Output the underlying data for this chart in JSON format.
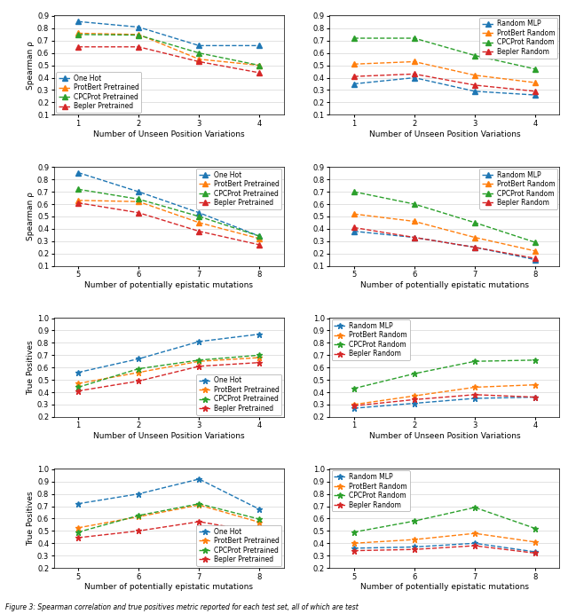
{
  "figsize": [
    6.4,
    6.92
  ],
  "row0_left": {
    "xlabel": "Number of Unseen Position Variations",
    "ylabel": "Spearman ρ",
    "xlim": [
      0.6,
      4.4
    ],
    "ylim": [
      0.1,
      0.9
    ],
    "yticks": [
      0.1,
      0.2,
      0.3,
      0.4,
      0.5,
      0.6,
      0.7,
      0.8,
      0.9
    ],
    "xticks": [
      1,
      2,
      3,
      4
    ],
    "series": [
      {
        "label": "One Hot",
        "x": [
          1,
          2,
          3,
          4
        ],
        "y": [
          0.855,
          0.81,
          0.66,
          0.66
        ],
        "color": "#1f77b4",
        "marker": "^"
      },
      {
        "label": "ProtBert Pretrained",
        "x": [
          1,
          2,
          3,
          4
        ],
        "y": [
          0.76,
          0.75,
          0.55,
          0.5
        ],
        "color": "#ff7f0e",
        "marker": "^"
      },
      {
        "label": "CPCProt Pretrained",
        "x": [
          1,
          2,
          3,
          4
        ],
        "y": [
          0.75,
          0.745,
          0.6,
          0.5
        ],
        "color": "#2ca02c",
        "marker": "^"
      },
      {
        "label": "Bepler Pretrained",
        "x": [
          1,
          2,
          3,
          4
        ],
        "y": [
          0.65,
          0.65,
          0.53,
          0.44
        ],
        "color": "#d62728",
        "marker": "^"
      }
    ],
    "legend_loc": "lower left"
  },
  "row0_right": {
    "xlabel": "Number of Unseen Position Variations",
    "ylabel": "",
    "xlim": [
      0.6,
      4.4
    ],
    "ylim": [
      0.1,
      0.9
    ],
    "yticks": [
      0.1,
      0.2,
      0.3,
      0.4,
      0.5,
      0.6,
      0.7,
      0.8,
      0.9
    ],
    "xticks": [
      1,
      2,
      3,
      4
    ],
    "series": [
      {
        "label": "Random MLP",
        "x": [
          1,
          2,
          3,
          4
        ],
        "y": [
          0.35,
          0.4,
          0.29,
          0.26
        ],
        "color": "#1f77b4",
        "marker": "^"
      },
      {
        "label": "ProtBert Random",
        "x": [
          1,
          2,
          3,
          4
        ],
        "y": [
          0.51,
          0.53,
          0.42,
          0.36
        ],
        "color": "#ff7f0e",
        "marker": "^"
      },
      {
        "label": "CPCProt Random",
        "x": [
          1,
          2,
          3,
          4
        ],
        "y": [
          0.72,
          0.72,
          0.58,
          0.47
        ],
        "color": "#2ca02c",
        "marker": "^"
      },
      {
        "label": "Bepler Random",
        "x": [
          1,
          2,
          3,
          4
        ],
        "y": [
          0.41,
          0.43,
          0.34,
          0.29
        ],
        "color": "#d62728",
        "marker": "^"
      }
    ],
    "legend_loc": "upper right"
  },
  "row1_left": {
    "xlabel": "Number of potentially epistatic mutations",
    "ylabel": "Spearman ρ",
    "xlim": [
      4.6,
      8.4
    ],
    "ylim": [
      0.1,
      0.9
    ],
    "yticks": [
      0.1,
      0.2,
      0.3,
      0.4,
      0.5,
      0.6,
      0.7,
      0.8,
      0.9
    ],
    "xticks": [
      5,
      6,
      7,
      8
    ],
    "series": [
      {
        "label": "One Hot",
        "x": [
          5,
          6,
          7,
          8
        ],
        "y": [
          0.855,
          0.7,
          0.53,
          0.34
        ],
        "color": "#1f77b4",
        "marker": "^"
      },
      {
        "label": "ProtBert Pretrained",
        "x": [
          5,
          6,
          7,
          8
        ],
        "y": [
          0.63,
          0.62,
          0.45,
          0.32
        ],
        "color": "#ff7f0e",
        "marker": "^"
      },
      {
        "label": "CPCProt Pretrained",
        "x": [
          5,
          6,
          7,
          8
        ],
        "y": [
          0.72,
          0.64,
          0.5,
          0.34
        ],
        "color": "#2ca02c",
        "marker": "^"
      },
      {
        "label": "Bepler Pretrained",
        "x": [
          5,
          6,
          7,
          8
        ],
        "y": [
          0.61,
          0.53,
          0.38,
          0.27
        ],
        "color": "#d62728",
        "marker": "^"
      }
    ],
    "legend_loc": "upper right"
  },
  "row1_right": {
    "xlabel": "Number of potentially epistatic mutations",
    "ylabel": "",
    "xlim": [
      4.6,
      8.4
    ],
    "ylim": [
      0.1,
      0.9
    ],
    "yticks": [
      0.1,
      0.2,
      0.3,
      0.4,
      0.5,
      0.6,
      0.7,
      0.8,
      0.9
    ],
    "xticks": [
      5,
      6,
      7,
      8
    ],
    "series": [
      {
        "label": "Random MLP",
        "x": [
          5,
          6,
          7,
          8
        ],
        "y": [
          0.38,
          0.33,
          0.25,
          0.15
        ],
        "color": "#1f77b4",
        "marker": "^"
      },
      {
        "label": "ProtBert Random",
        "x": [
          5,
          6,
          7,
          8
        ],
        "y": [
          0.52,
          0.46,
          0.33,
          0.22
        ],
        "color": "#ff7f0e",
        "marker": "^"
      },
      {
        "label": "CPCProt Random",
        "x": [
          5,
          6,
          7,
          8
        ],
        "y": [
          0.7,
          0.6,
          0.45,
          0.29
        ],
        "color": "#2ca02c",
        "marker": "^"
      },
      {
        "label": "Bepler Random",
        "x": [
          5,
          6,
          7,
          8
        ],
        "y": [
          0.41,
          0.33,
          0.25,
          0.16
        ],
        "color": "#d62728",
        "marker": "^"
      }
    ],
    "legend_loc": "upper right"
  },
  "row2_left": {
    "xlabel": "Number of Unseen Position Variations",
    "ylabel": "True Positives",
    "xlim": [
      0.6,
      4.4
    ],
    "ylim": [
      0.2,
      1.0
    ],
    "yticks": [
      0.2,
      0.3,
      0.4,
      0.5,
      0.6,
      0.7,
      0.8,
      0.9,
      1.0
    ],
    "xticks": [
      1,
      2,
      3,
      4
    ],
    "series": [
      {
        "label": "One Hot",
        "x": [
          1,
          2,
          3,
          4
        ],
        "y": [
          0.56,
          0.67,
          0.81,
          0.87
        ],
        "color": "#1f77b4",
        "marker": "*"
      },
      {
        "label": "ProtBert Pretrained",
        "x": [
          1,
          2,
          3,
          4
        ],
        "y": [
          0.47,
          0.56,
          0.65,
          0.68
        ],
        "color": "#ff7f0e",
        "marker": "*"
      },
      {
        "label": "CPCProt Pretrained",
        "x": [
          1,
          2,
          3,
          4
        ],
        "y": [
          0.44,
          0.59,
          0.66,
          0.7
        ],
        "color": "#2ca02c",
        "marker": "*"
      },
      {
        "label": "Bepler Pretrained",
        "x": [
          1,
          2,
          3,
          4
        ],
        "y": [
          0.41,
          0.49,
          0.61,
          0.64
        ],
        "color": "#d62728",
        "marker": "*"
      }
    ],
    "legend_loc": "lower right"
  },
  "row2_right": {
    "xlabel": "Number of Unseen Position Variations",
    "ylabel": "",
    "xlim": [
      0.6,
      4.4
    ],
    "ylim": [
      0.2,
      1.0
    ],
    "yticks": [
      0.2,
      0.3,
      0.4,
      0.5,
      0.6,
      0.7,
      0.8,
      0.9,
      1.0
    ],
    "xticks": [
      1,
      2,
      3,
      4
    ],
    "series": [
      {
        "label": "Random MLP",
        "x": [
          1,
          2,
          3,
          4
        ],
        "y": [
          0.27,
          0.31,
          0.35,
          0.36
        ],
        "color": "#1f77b4",
        "marker": "*"
      },
      {
        "label": "ProtBert Random",
        "x": [
          1,
          2,
          3,
          4
        ],
        "y": [
          0.3,
          0.37,
          0.44,
          0.46
        ],
        "color": "#ff7f0e",
        "marker": "*"
      },
      {
        "label": "CPCProt Random",
        "x": [
          1,
          2,
          3,
          4
        ],
        "y": [
          0.43,
          0.55,
          0.65,
          0.66
        ],
        "color": "#2ca02c",
        "marker": "*"
      },
      {
        "label": "Bepler Random",
        "x": [
          1,
          2,
          3,
          4
        ],
        "y": [
          0.29,
          0.34,
          0.38,
          0.36
        ],
        "color": "#d62728",
        "marker": "*"
      }
    ],
    "legend_loc": "upper left"
  },
  "row3_left": {
    "xlabel": "Number of potentially epistatic mutations",
    "ylabel": "True Positives",
    "xlim": [
      4.6,
      8.4
    ],
    "ylim": [
      0.2,
      1.0
    ],
    "yticks": [
      0.2,
      0.3,
      0.4,
      0.5,
      0.6,
      0.7,
      0.8,
      0.9,
      1.0
    ],
    "xticks": [
      5,
      6,
      7,
      8
    ],
    "series": [
      {
        "label": "One Hot",
        "x": [
          5,
          6,
          7,
          8
        ],
        "y": [
          0.72,
          0.8,
          0.92,
          0.675
        ],
        "color": "#1f77b4",
        "marker": "*"
      },
      {
        "label": "ProtBert Pretrained",
        "x": [
          5,
          6,
          7,
          8
        ],
        "y": [
          0.525,
          0.615,
          0.71,
          0.57
        ],
        "color": "#ff7f0e",
        "marker": "*"
      },
      {
        "label": "CPCProt Pretrained",
        "x": [
          5,
          6,
          7,
          8
        ],
        "y": [
          0.49,
          0.625,
          0.72,
          0.595
        ],
        "color": "#2ca02c",
        "marker": "*"
      },
      {
        "label": "Bepler Pretrained",
        "x": [
          5,
          6,
          7,
          8
        ],
        "y": [
          0.445,
          0.5,
          0.575,
          0.49
        ],
        "color": "#d62728",
        "marker": "*"
      }
    ],
    "legend_loc": "lower right"
  },
  "row3_right": {
    "xlabel": "Number of potentially epistatic mutations",
    "ylabel": "",
    "xlim": [
      4.6,
      8.4
    ],
    "ylim": [
      0.2,
      1.0
    ],
    "yticks": [
      0.2,
      0.3,
      0.4,
      0.5,
      0.6,
      0.7,
      0.8,
      0.9,
      1.0
    ],
    "xticks": [
      5,
      6,
      7,
      8
    ],
    "series": [
      {
        "label": "Random MLP",
        "x": [
          5,
          6,
          7,
          8
        ],
        "y": [
          0.36,
          0.37,
          0.4,
          0.33
        ],
        "color": "#1f77b4",
        "marker": "*"
      },
      {
        "label": "ProtBert Random",
        "x": [
          5,
          6,
          7,
          8
        ],
        "y": [
          0.4,
          0.43,
          0.48,
          0.41
        ],
        "color": "#ff7f0e",
        "marker": "*"
      },
      {
        "label": "CPCProt Random",
        "x": [
          5,
          6,
          7,
          8
        ],
        "y": [
          0.49,
          0.58,
          0.69,
          0.52
        ],
        "color": "#2ca02c",
        "marker": "*"
      },
      {
        "label": "Bepler Random",
        "x": [
          5,
          6,
          7,
          8
        ],
        "y": [
          0.34,
          0.35,
          0.38,
          0.32
        ],
        "color": "#d62728",
        "marker": "*"
      }
    ],
    "legend_loc": "upper left"
  },
  "caption": "Figure 3: Spearman correlation and true positives metric reported for each test set, all of which are test",
  "fontsize": 6.5,
  "legend_fontsize": 5.5,
  "tick_fontsize": 6.0
}
